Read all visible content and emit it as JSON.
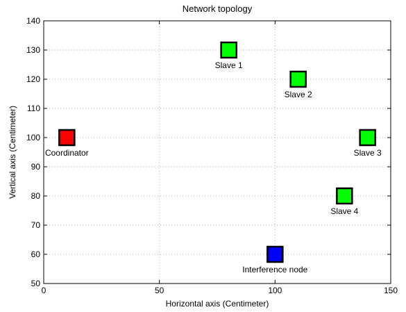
{
  "chart_data": {
    "type": "scatter",
    "title": "Network topology",
    "xlabel": "Horizontal axis (Centimeter)",
    "ylabel": "Vertical axis (Centimeter)",
    "xlim": [
      0,
      150
    ],
    "ylim": [
      50,
      140
    ],
    "xticks": [
      0,
      50,
      100,
      150
    ],
    "yticks": [
      50,
      60,
      70,
      80,
      90,
      100,
      110,
      120,
      130,
      140
    ],
    "grid": true,
    "points": [
      {
        "label": "Coordinator",
        "x": 10,
        "y": 100,
        "color": "#ff0000",
        "label_pos": "below"
      },
      {
        "label": "Slave 1",
        "x": 80,
        "y": 130,
        "color": "#00ff00",
        "label_pos": "below"
      },
      {
        "label": "Slave 2",
        "x": 110,
        "y": 120,
        "color": "#00ff00",
        "label_pos": "below"
      },
      {
        "label": "Slave 3",
        "x": 140,
        "y": 100,
        "color": "#00ff00",
        "label_pos": "below"
      },
      {
        "label": "Slave 4",
        "x": 130,
        "y": 80,
        "color": "#00ff00",
        "label_pos": "below"
      },
      {
        "label": "Interference node",
        "x": 100,
        "y": 60,
        "color": "#0000ff",
        "label_pos": "below"
      }
    ]
  }
}
